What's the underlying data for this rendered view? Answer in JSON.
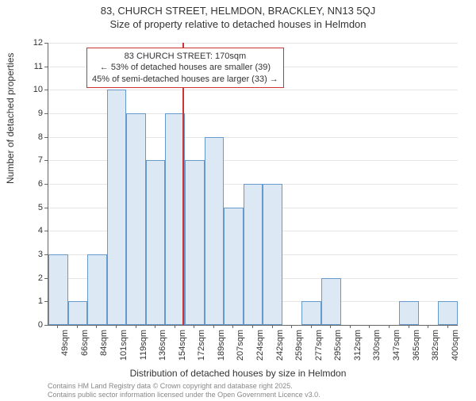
{
  "chart": {
    "type": "histogram",
    "title_line1": "83, CHURCH STREET, HELMDON, BRACKLEY, NN13 5QJ",
    "title_line2": "Size of property relative to detached houses in Helmdon",
    "x_axis_title": "Distribution of detached houses by size in Helmdon",
    "y_axis_title": "Number of detached properties",
    "y_max": 12,
    "y_tick_step": 1,
    "x_categories": [
      "49sqm",
      "66sqm",
      "84sqm",
      "101sqm",
      "119sqm",
      "136sqm",
      "154sqm",
      "172sqm",
      "189sqm",
      "207sqm",
      "224sqm",
      "242sqm",
      "259sqm",
      "277sqm",
      "295sqm",
      "312sqm",
      "330sqm",
      "347sqm",
      "365sqm",
      "382sqm",
      "400sqm"
    ],
    "bars": [
      3,
      1,
      3,
      10,
      9,
      7,
      9,
      7,
      8,
      5,
      6,
      6,
      0,
      1,
      2,
      0,
      0,
      0,
      1,
      0,
      1
    ],
    "bar_fill": "#dce8f4",
    "bar_border": "#6699cc",
    "grid_color": "#e6e6e6",
    "axis_color": "#666666",
    "background_color": "#ffffff",
    "marker_value_sqm": 170,
    "marker_color": "#cc3333",
    "annotation_lines": [
      "83 CHURCH STREET: 170sqm",
      "← 53% of detached houses are smaller (39)",
      "45% of semi-detached houses are larger (33) →"
    ],
    "footer_line1": "Contains HM Land Registry data © Crown copyright and database right 2025.",
    "footer_line2": "Contains public sector information licensed under the Open Government Licence v3.0.",
    "title_fontsize": 13,
    "axis_title_fontsize": 12,
    "tick_fontsize": 11,
    "annot_fontsize": 11,
    "footer_fontsize": 9
  }
}
